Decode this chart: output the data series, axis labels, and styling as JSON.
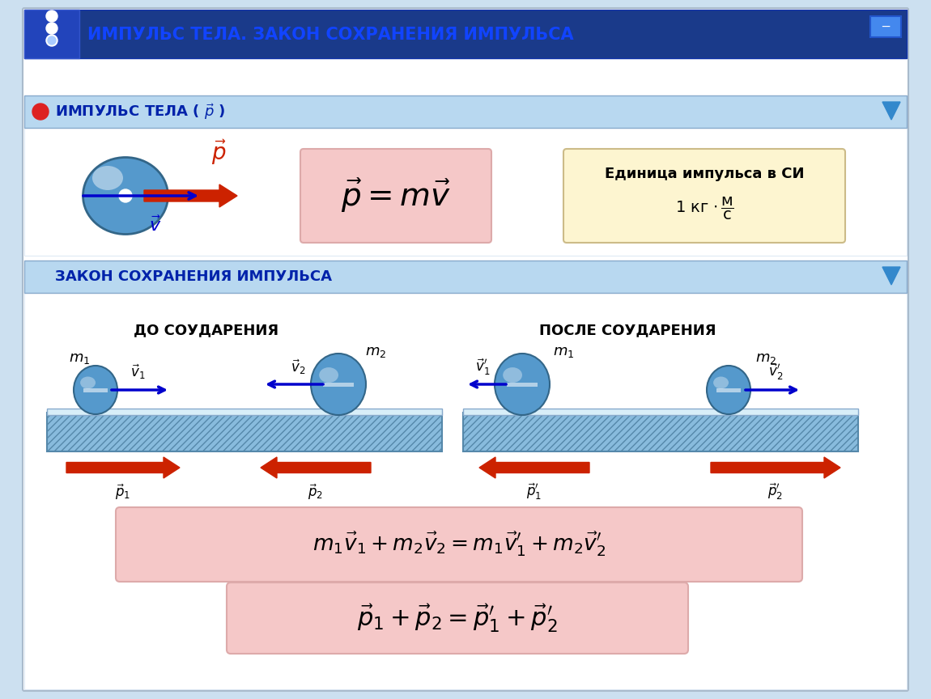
{
  "bg_color": "#cce0f0",
  "title_bar_color": "#1a3a8a",
  "title_text": "ИМПУЛЬС ТЕЛА. ЗАКОН СОХРАНЕНИЯ ИМПУЛЬСА",
  "title_text_color": "#1144ff",
  "section_bar_color": "#b8d8f0",
  "white_bg": "#ffffff",
  "formula_bg": "#f5c8c8",
  "unit_bg": "#fdf5d0",
  "ball_color": "#5599cc",
  "arrow_red": "#cc2200",
  "arrow_blue": "#0000cc",
  "track_color": "#88bbdd",
  "track_hatch": "////",
  "formula1": "$m_1 \\vec{v}_1 + m_2 \\vec{v}_2 = m_1 \\vec{v}_1^{\\prime} + m_2 \\vec{v}_2^{\\prime}$",
  "formula2": "$\\vec{p}_1 + \\vec{p}_2 = \\vec{p}_1^{\\prime} + \\vec{p}_2^{\\prime}$",
  "formula_impulse": "$\\vec{p} = m\\vec{v}$"
}
